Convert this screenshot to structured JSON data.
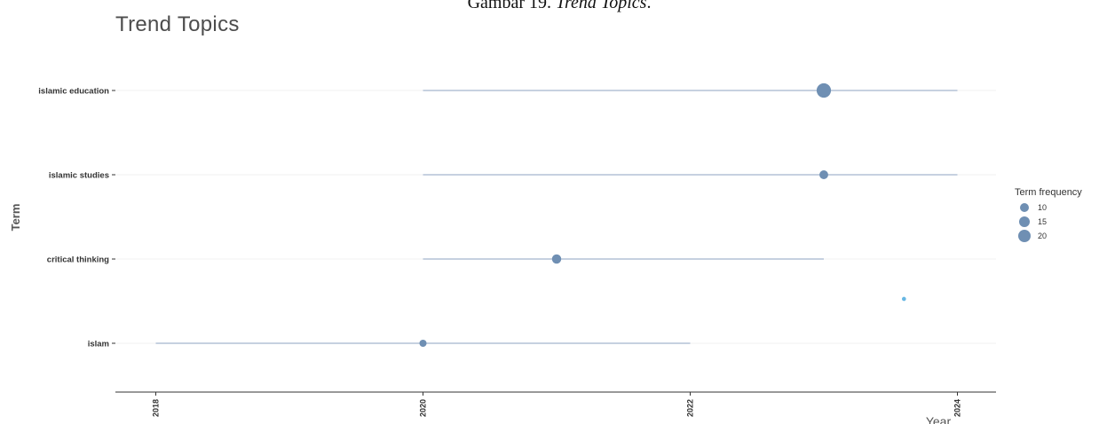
{
  "caption": {
    "prefix": "Gambar 19. ",
    "italic": "Trend Topics",
    "suffix": "."
  },
  "chart_data": {
    "type": "scatter",
    "title": "Trend Topics",
    "xlabel": "Year",
    "ylabel": "Term",
    "xlim": [
      2017.85,
      2024.3
    ],
    "x_ticks": [
      "2018",
      "2020",
      "2022",
      "2024"
    ],
    "grid": true,
    "legend_position": "right",
    "colors": {
      "point": "#6f8fb3",
      "range_line": "#b3c2d6",
      "stray_point": "#68b7e3",
      "axis": "#333333"
    },
    "legend": {
      "title": "Term frequency",
      "entries": [
        {
          "label": "10",
          "value": 10
        },
        {
          "label": "15",
          "value": 15
        },
        {
          "label": "20",
          "value": 20
        }
      ]
    },
    "terms": [
      {
        "term": "islamic education",
        "year_q1": 2020,
        "year_median": 2023,
        "year_q3": 2024,
        "freq": 24
      },
      {
        "term": "islamic studies",
        "year_q1": 2020,
        "year_median": 2023,
        "year_q3": 2024,
        "freq": 9
      },
      {
        "term": "critical thinking",
        "year_q1": 2020,
        "year_median": 2021,
        "year_q3": 2023,
        "freq": 10
      },
      {
        "term": "islam",
        "year_q1": 2018,
        "year_median": 2020,
        "year_q3": 2022,
        "freq": 6
      }
    ],
    "stray_point": {
      "x": 2023.6,
      "freq": 2
    }
  }
}
